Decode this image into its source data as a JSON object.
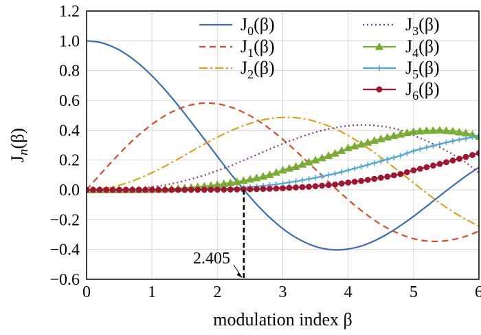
{
  "chart_data": {
    "type": "line",
    "title": "",
    "xlabel": "modulation index β",
    "ylabel_base": "J",
    "ylabel_sub": "n",
    "ylabel_suffix": "(β)",
    "xlim": [
      0,
      6
    ],
    "ylim": [
      -0.6,
      1.2
    ],
    "grid": true,
    "legend_placement": "top-center",
    "x_ticks": [
      "0",
      "1",
      "2",
      "3",
      "4",
      "5",
      "6"
    ],
    "y_ticks": [
      "1.2",
      "1.0",
      "0.8",
      "0.6",
      "0.4",
      "0.2",
      "0.0",
      "−0.2",
      "−0.4",
      "−0.6"
    ],
    "x": [
      0,
      0.2,
      0.4,
      0.6,
      0.8,
      1.0,
      1.2,
      1.4,
      1.6,
      1.8,
      2.0,
      2.2,
      2.4,
      2.6,
      2.8,
      3.0,
      3.2,
      3.4,
      3.6,
      3.8,
      4.0,
      4.2,
      4.4,
      4.6,
      4.8,
      5.0,
      5.2,
      5.4,
      5.6,
      5.8,
      6.0
    ],
    "series": [
      {
        "name": "J0(β)",
        "label_base": "J",
        "label_sub": "0",
        "label_suffix": "(β)",
        "color": "#3B6DB3",
        "dash": "",
        "marker": "none",
        "values": [
          1.0,
          0.99,
          0.96,
          0.912,
          0.846,
          0.765,
          0.671,
          0.567,
          0.455,
          0.34,
          0.224,
          0.11,
          0.003,
          -0.097,
          -0.185,
          -0.26,
          -0.32,
          -0.364,
          -0.392,
          -0.403,
          -0.397,
          -0.377,
          -0.342,
          -0.296,
          -0.24,
          -0.178,
          -0.11,
          -0.041,
          0.027,
          0.092,
          0.151
        ]
      },
      {
        "name": "J1(β)",
        "label_base": "J",
        "label_sub": "1",
        "label_suffix": "(β)",
        "color": "#D64A2A",
        "dash": "9,6",
        "marker": "none",
        "values": [
          0.0,
          0.1,
          0.196,
          0.287,
          0.369,
          0.44,
          0.498,
          0.542,
          0.57,
          0.582,
          0.577,
          0.556,
          0.52,
          0.471,
          0.41,
          0.339,
          0.261,
          0.179,
          0.096,
          0.013,
          -0.066,
          -0.138,
          -0.203,
          -0.257,
          -0.298,
          -0.328,
          -0.343,
          -0.345,
          -0.334,
          -0.311,
          -0.277
        ]
      },
      {
        "name": "J2(β)",
        "label_base": "J",
        "label_sub": "2",
        "label_suffix": "(β)",
        "color": "#E0A01E",
        "dash": "12,4,3,4",
        "marker": "none",
        "values": [
          0.0,
          0.005,
          0.02,
          0.044,
          0.076,
          0.115,
          0.159,
          0.207,
          0.257,
          0.307,
          0.353,
          0.395,
          0.431,
          0.459,
          0.478,
          0.486,
          0.484,
          0.47,
          0.445,
          0.41,
          0.364,
          0.311,
          0.25,
          0.185,
          0.116,
          0.047,
          -0.022,
          -0.087,
          -0.146,
          -0.198,
          -0.243
        ]
      },
      {
        "name": "J3(β)",
        "label_base": "J",
        "label_sub": "3",
        "label_suffix": "(β)",
        "color": "#7E2F8E",
        "dash": "2,4",
        "marker": "none",
        "values": [
          0.0,
          0.0002,
          0.0013,
          0.0044,
          0.01,
          0.02,
          0.033,
          0.05,
          0.073,
          0.098,
          0.129,
          0.161,
          0.198,
          0.235,
          0.273,
          0.309,
          0.343,
          0.373,
          0.398,
          0.417,
          0.43,
          0.435,
          0.432,
          0.421,
          0.401,
          0.365,
          0.328,
          0.286,
          0.238,
          0.183,
          0.115
        ]
      },
      {
        "name": "J4(β)",
        "label_base": "J",
        "label_sub": "4",
        "label_suffix": "(β)",
        "color": "#77AC30",
        "dash": "",
        "marker": "triangle",
        "values": [
          0.0,
          0.0,
          0.0,
          0.0003,
          0.001,
          0.0025,
          0.005,
          0.0094,
          0.0157,
          0.0245,
          0.034,
          0.047,
          0.062,
          0.08,
          0.101,
          0.132,
          0.156,
          0.186,
          0.214,
          0.245,
          0.281,
          0.306,
          0.331,
          0.353,
          0.373,
          0.391,
          0.397,
          0.4,
          0.394,
          0.381,
          0.358
        ]
      },
      {
        "name": "J5(β)",
        "label_base": "J",
        "label_sub": "5",
        "label_suffix": "(β)",
        "color": "#4DA6D9",
        "dash": "",
        "marker": "plus",
        "values": [
          0.0,
          0.0,
          0.0,
          0.0,
          0.0001,
          0.0002,
          0.0005,
          0.0011,
          0.0022,
          0.0038,
          0.007,
          0.01,
          0.016,
          0.023,
          0.032,
          0.043,
          0.057,
          0.073,
          0.09,
          0.109,
          0.132,
          0.156,
          0.18,
          0.205,
          0.23,
          0.261,
          0.285,
          0.307,
          0.328,
          0.345,
          0.362
        ]
      },
      {
        "name": "J6(β)",
        "label_base": "J",
        "label_sub": "6",
        "label_suffix": "(β)",
        "color": "#A2142F",
        "dash": "",
        "marker": "circle",
        "values": [
          0.0,
          0.0,
          0.0,
          0.0,
          0.0,
          0.0,
          0.0001,
          0.0001,
          0.0003,
          0.0006,
          0.0012,
          0.002,
          0.0033,
          0.0051,
          0.0075,
          0.011,
          0.016,
          0.021,
          0.028,
          0.036,
          0.049,
          0.06,
          0.074,
          0.089,
          0.106,
          0.131,
          0.152,
          0.174,
          0.197,
          0.221,
          0.246
        ]
      }
    ],
    "annotations": [
      {
        "text": "2.405",
        "x": 2.405,
        "y": 0.0
      }
    ]
  }
}
